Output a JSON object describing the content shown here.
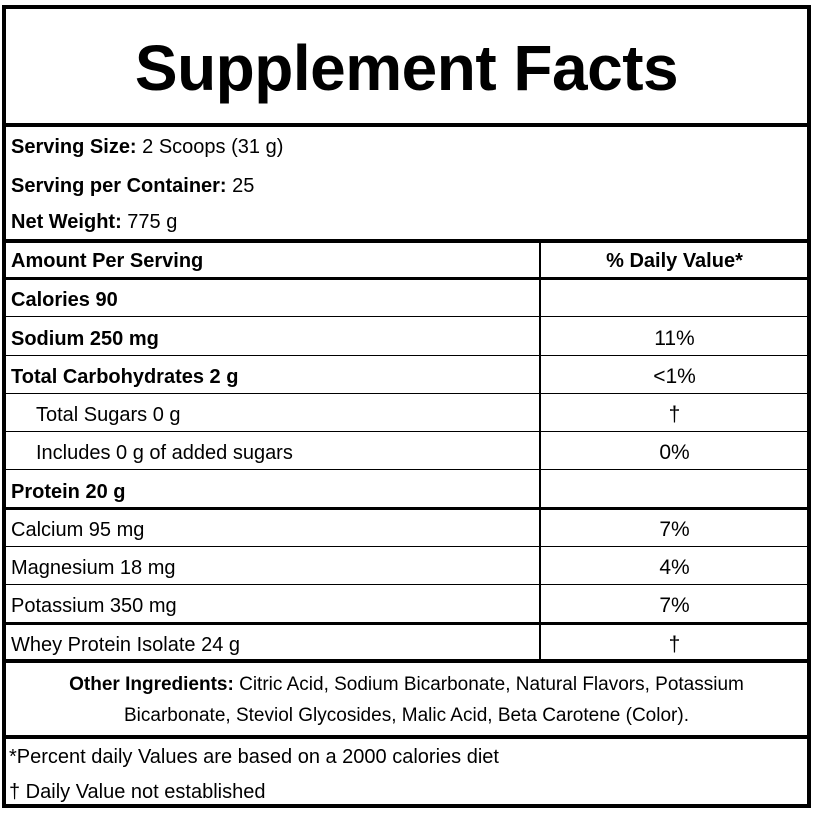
{
  "title": "Supplement Facts",
  "serving": {
    "size_label": "Serving Size:",
    "size_value": " 2 Scoops (31 g)",
    "per_container_label": "Serving per Container:",
    "per_container_value": " 25",
    "net_weight_label": "Net Weight:",
    "net_weight_value": " 775 g"
  },
  "table_header": {
    "amount_label": "Amount Per Serving",
    "dv_label": "% Daily Value*"
  },
  "rows": [
    {
      "name": "Calories 90",
      "dv": ""
    },
    {
      "name": "Sodium 250 mg",
      "dv": "11%"
    },
    {
      "name": "Total Carbohydrates 2 g",
      "dv": "<1%"
    },
    {
      "name": "Total Sugars 0 g",
      "dv": "†"
    },
    {
      "name": "Includes 0 g of added sugars",
      "dv": "0%"
    },
    {
      "name": "Protein 20 g",
      "dv": ""
    },
    {
      "name": "Calcium 95 mg",
      "dv": "7%"
    },
    {
      "name": "Magnesium 18 mg",
      "dv": "4%"
    },
    {
      "name": "Potassium 350 mg",
      "dv": "7%"
    },
    {
      "name": "Whey Protein Isolate 24 g",
      "dv": "†"
    }
  ],
  "other_ingredients": {
    "label": "Other Ingredients:",
    "text": " Citric Acid, Sodium Bicarbonate, Natural Flavors, Potassium Bicarbonate, Steviol Glycosides, Malic Acid, Beta Carotene (Color)."
  },
  "footnotes": {
    "percent_note": "*Percent daily Values are based on a 2000 calories diet",
    "dagger_note": "† Daily Value not established"
  }
}
